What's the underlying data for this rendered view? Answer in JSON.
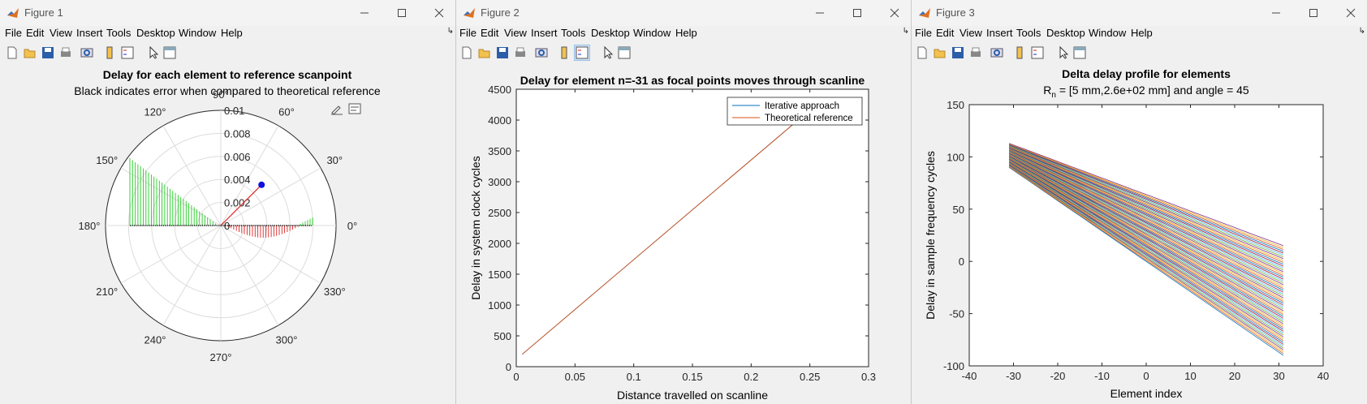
{
  "windows": [
    {
      "title": "Figure 1",
      "menus": [
        "File",
        "Edit",
        "View",
        "Insert",
        "Tools",
        "Desktop",
        "Window",
        "Help"
      ],
      "plot": {
        "title": "Delay for each element to reference scanpoint",
        "subtitle": "Black indicates error when compared to theoretical reference",
        "angle_labels": [
          "90°",
          "60°",
          "30°",
          "0°",
          "330°",
          "300°",
          "270°",
          "240°",
          "210°",
          "180°",
          "150°",
          "120°"
        ],
        "radial_labels": [
          "0",
          "0.002",
          "0.004",
          "0.006",
          "0.008",
          "0.01"
        ]
      }
    },
    {
      "title": "Figure 2",
      "menus": [
        "File",
        "Edit",
        "View",
        "Insert",
        "Tools",
        "Desktop",
        "Window",
        "Help"
      ],
      "plot": {
        "title": "Delay for element n=-31 as focal points moves through scanline",
        "xlabel": "Distance travelled on scanline",
        "ylabel": "Delay in system clock cycles",
        "xticks": [
          "0",
          "0.05",
          "0.1",
          "0.15",
          "0.2",
          "0.25",
          "0.3"
        ],
        "yticks": [
          "0",
          "500",
          "1000",
          "1500",
          "2000",
          "2500",
          "3000",
          "3500",
          "4000",
          "4500"
        ],
        "legend": [
          "Iterative approach",
          "Theoretical reference"
        ]
      }
    },
    {
      "title": "Figure 3",
      "menus": [
        "File",
        "Edit",
        "View",
        "Insert",
        "Tools",
        "Desktop",
        "Window",
        "Help"
      ],
      "plot": {
        "title": "Delta delay profile for elements",
        "subtitle_main": "R",
        "subtitle_sub": "n",
        "subtitle_rest": " = [5 mm,2.6e+02 mm] and angle = 45",
        "xlabel": "Element index",
        "ylabel": "Delay in sample frequency cycles",
        "xticks": [
          "-40",
          "-30",
          "-20",
          "-10",
          "0",
          "10",
          "20",
          "30",
          "40"
        ],
        "yticks": [
          "-100",
          "-50",
          "0",
          "50",
          "100",
          "150"
        ]
      }
    }
  ],
  "colors": {
    "iterative": "#0072BD",
    "theoretical": "#D95319",
    "polar_positive": "#22cc22",
    "polar_negative": "#dd2222",
    "polar_dot": "#1010dd"
  },
  "chart_data": [
    {
      "type": "scatter",
      "projection": "polar",
      "title": "Delay for each element to reference scanpoint",
      "subtitle": "Black indicates error when compared to theoretical reference",
      "rlim": [
        0,
        0.01
      ],
      "point": {
        "theta_deg": 45,
        "r": 0.005
      }
    },
    {
      "type": "line",
      "title": "Delay for element n=-31 as focal points moves through scanline",
      "xlabel": "Distance travelled on scanline",
      "ylabel": "Delay in system clock cycles",
      "xlim": [
        0,
        0.3
      ],
      "ylim": [
        0,
        4500
      ],
      "series": [
        {
          "name": "Iterative approach",
          "x": [
            0.005,
            0.24
          ],
          "values": [
            200,
            4000
          ]
        },
        {
          "name": "Theoretical reference",
          "x": [
            0.005,
            0.24
          ],
          "values": [
            200,
            4000
          ]
        }
      ]
    },
    {
      "type": "line",
      "title": "Delta delay profile for elements",
      "xlabel": "Element index",
      "ylabel": "Delay in sample frequency cycles",
      "xlim": [
        -40,
        40
      ],
      "ylim": [
        -100,
        150
      ],
      "x_range": [
        -31,
        31
      ],
      "envelope": {
        "upper_start": 113,
        "upper_end": 15,
        "lower_start": 90,
        "lower_end": -90
      }
    }
  ]
}
